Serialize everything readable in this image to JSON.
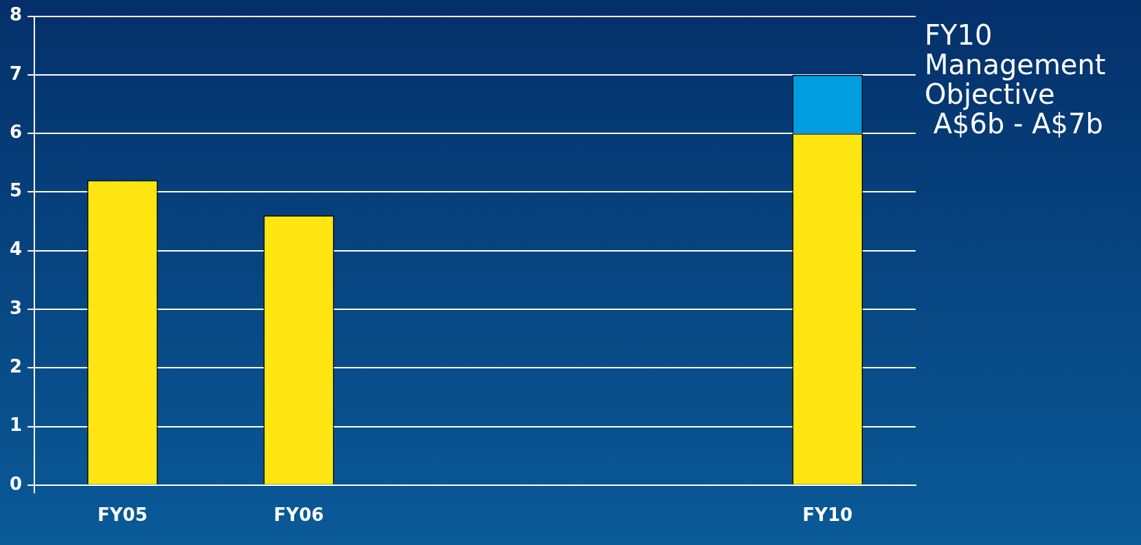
{
  "chart_data": {
    "type": "bar",
    "stacked": true,
    "categories": [
      "FY05",
      "FY06",
      null,
      null,
      "FY10"
    ],
    "series": [
      {
        "color": "#ffe512",
        "values": [
          5.2,
          4.6,
          null,
          null,
          6
        ]
      },
      {
        "color": "#009de0",
        "values": [
          null,
          null,
          null,
          null,
          1
        ]
      }
    ],
    "ylim": [
      0,
      8
    ],
    "yticks": [
      0,
      1,
      2,
      3,
      4,
      5,
      6,
      7,
      8
    ],
    "grid": "y",
    "legend": false,
    "annotations": [
      "FY10\nManagement\nObjective\n A$6b - A$7b"
    ]
  }
}
